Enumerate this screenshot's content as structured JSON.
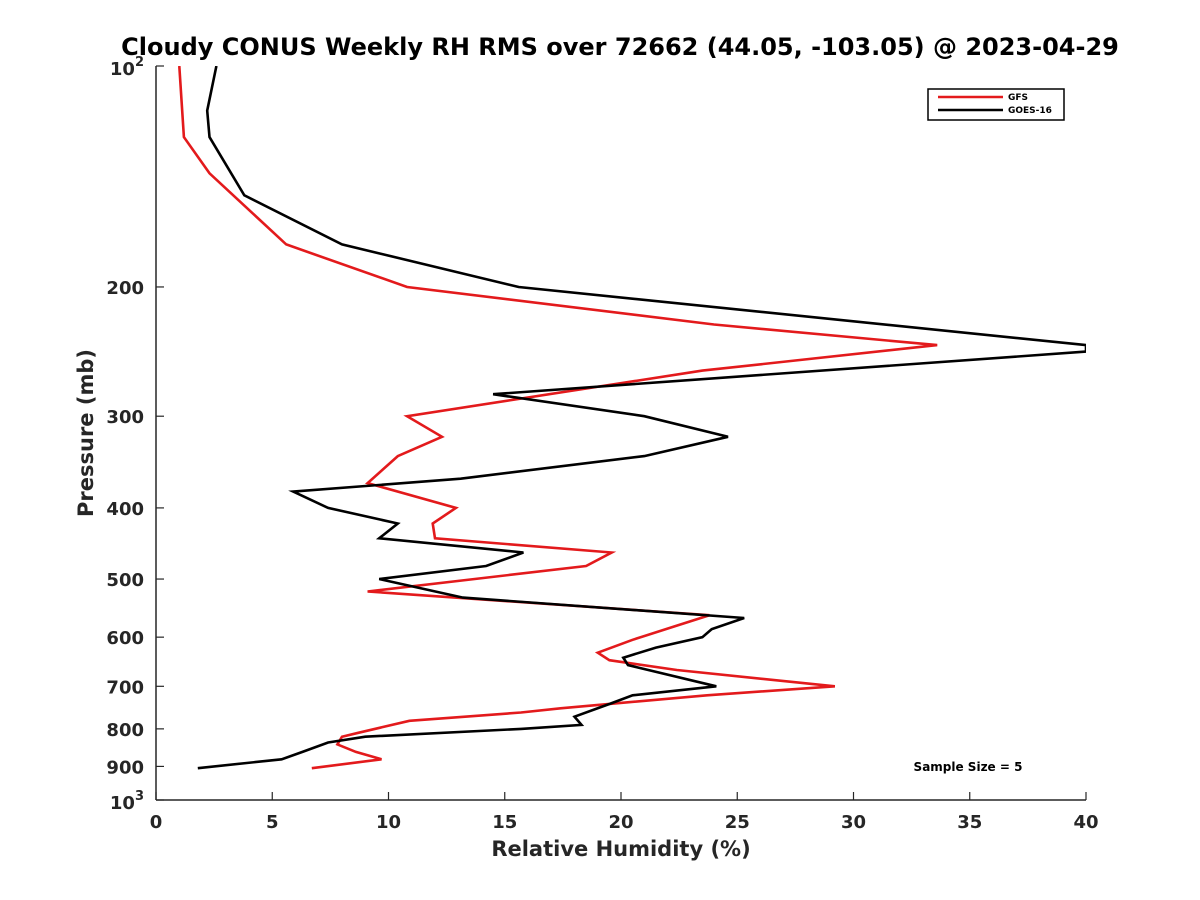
{
  "chart_data": {
    "type": "line",
    "title": "Cloudy CONUS Weekly RH RMS over 72662 (44.05, -103.05) @ 2023-04-29",
    "xlabel": "Relative Humidity (%)",
    "ylabel": "Pressure (mb)",
    "xlim": [
      0,
      40
    ],
    "ylim": [
      100,
      1000
    ],
    "yscale": "log",
    "y_reversed": true,
    "grid": false,
    "legend_position": "top-right",
    "x_ticks": [
      "0",
      "5",
      "10",
      "15",
      "20",
      "25",
      "30",
      "35",
      "40"
    ],
    "y_ticks": [
      {
        "value": 100,
        "base": "10",
        "exp": "2"
      },
      {
        "value": 200,
        "label": "200"
      },
      {
        "value": 300,
        "label": "300"
      },
      {
        "value": 400,
        "label": "400"
      },
      {
        "value": 500,
        "label": "500"
      },
      {
        "value": 600,
        "label": "600"
      },
      {
        "value": 700,
        "label": "700"
      },
      {
        "value": 800,
        "label": "800"
      },
      {
        "value": 900,
        "label": "900"
      },
      {
        "value": 1000,
        "base": "10",
        "exp": "3"
      }
    ],
    "annotation": "Sample Size = 5",
    "series": [
      {
        "name": "GFS",
        "color": "#e31a1c",
        "points": [
          [
            1.0,
            100
          ],
          [
            1.2,
            125
          ],
          [
            2.3,
            140
          ],
          [
            5.6,
            175
          ],
          [
            10.8,
            200
          ],
          [
            24.0,
            225
          ],
          [
            33.6,
            240
          ],
          [
            23.5,
            260
          ],
          [
            10.8,
            300
          ],
          [
            12.3,
            320
          ],
          [
            10.4,
            340
          ],
          [
            9.1,
            370
          ],
          [
            12.9,
            400
          ],
          [
            11.9,
            420
          ],
          [
            12.0,
            440
          ],
          [
            19.6,
            460
          ],
          [
            18.5,
            480
          ],
          [
            9.1,
            520
          ],
          [
            23.8,
            560
          ],
          [
            22.3,
            580
          ],
          [
            20.5,
            605
          ],
          [
            19.0,
            630
          ],
          [
            19.5,
            645
          ],
          [
            22.4,
            665
          ],
          [
            29.2,
            700
          ],
          [
            23.7,
            720
          ],
          [
            17.4,
            750
          ],
          [
            15.7,
            760
          ],
          [
            10.9,
            780
          ],
          [
            8.7,
            810
          ],
          [
            8.0,
            820
          ],
          [
            7.8,
            840
          ],
          [
            8.6,
            860
          ],
          [
            9.7,
            880
          ],
          [
            6.7,
            905
          ]
        ]
      },
      {
        "name": "GOES-16",
        "color": "#000000",
        "points": [
          [
            2.6,
            100
          ],
          [
            2.2,
            115
          ],
          [
            2.3,
            125
          ],
          [
            3.8,
            150
          ],
          [
            8.0,
            175
          ],
          [
            15.6,
            200
          ],
          [
            40.0,
            240
          ],
          [
            40.0,
            245
          ],
          [
            14.5,
            280
          ],
          [
            21.0,
            300
          ],
          [
            24.6,
            320
          ],
          [
            21.0,
            340
          ],
          [
            13.1,
            365
          ],
          [
            5.9,
            380
          ],
          [
            7.4,
            400
          ],
          [
            10.4,
            420
          ],
          [
            9.6,
            440
          ],
          [
            15.8,
            460
          ],
          [
            14.2,
            480
          ],
          [
            9.6,
            500
          ],
          [
            13.2,
            530
          ],
          [
            25.3,
            565
          ],
          [
            23.9,
            585
          ],
          [
            23.5,
            600
          ],
          [
            21.5,
            620
          ],
          [
            20.1,
            640
          ],
          [
            20.3,
            655
          ],
          [
            24.1,
            700
          ],
          [
            20.5,
            720
          ],
          [
            19.5,
            740
          ],
          [
            18.0,
            770
          ],
          [
            18.3,
            790
          ],
          [
            15.7,
            800
          ],
          [
            9.0,
            820
          ],
          [
            7.4,
            835
          ],
          [
            6.3,
            860
          ],
          [
            5.4,
            880
          ],
          [
            1.8,
            905
          ]
        ]
      }
    ]
  }
}
